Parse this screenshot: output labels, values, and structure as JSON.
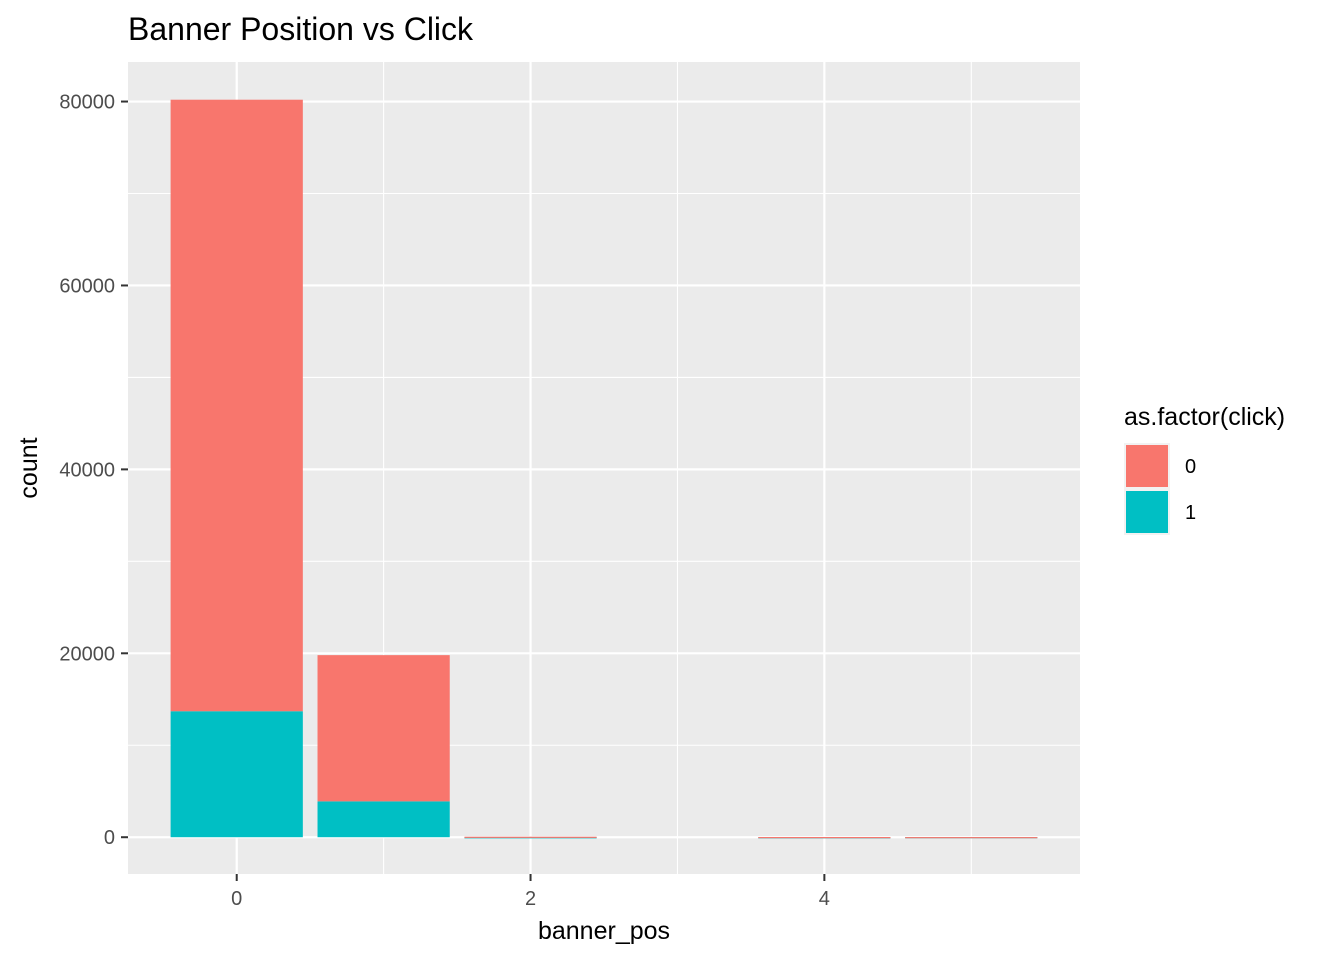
{
  "chart_data": {
    "type": "bar",
    "stacked": true,
    "title": "Banner Position vs Click",
    "xlabel": "banner_pos",
    "ylabel": "count",
    "x": [
      0,
      1,
      2,
      4,
      5
    ],
    "series": [
      {
        "name": "0",
        "color": "#F8766D",
        "values": [
          66500,
          15900,
          50,
          20,
          2
        ]
      },
      {
        "name": "1",
        "color": "#00BFC4",
        "values": [
          13700,
          3900,
          5,
          2,
          15
        ]
      }
    ],
    "xlim": [
      -0.74,
      5.74
    ],
    "ylim": [
      -4000,
      84300
    ],
    "x_ticks": [
      "0",
      "2",
      "4"
    ],
    "y_ticks": [
      "0",
      "20000",
      "40000",
      "60000",
      "80000"
    ],
    "grid": true,
    "legend": {
      "title": "as.factor(click)",
      "position": "right",
      "entries": [
        "0",
        "1"
      ]
    }
  }
}
